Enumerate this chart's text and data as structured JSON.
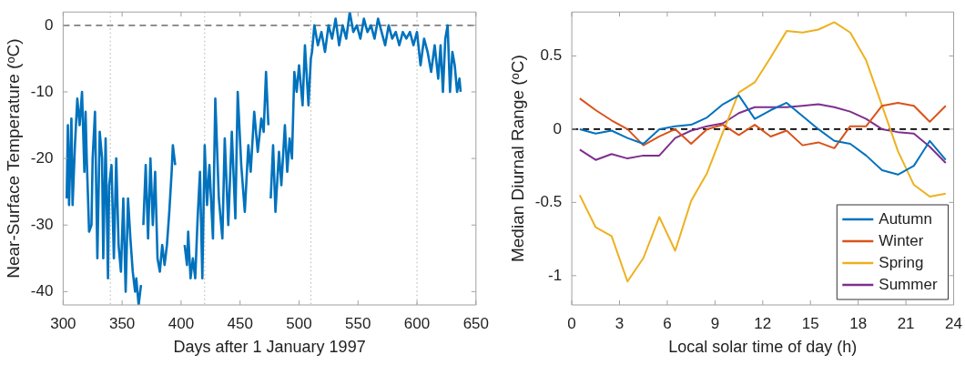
{
  "chart_data": [
    {
      "type": "line",
      "xlabel": "Days after 1 January 1997",
      "ylabel": "Near-Surface Temperature (ᵒC)",
      "xlim": [
        300,
        650
      ],
      "xticks": [
        300,
        350,
        400,
        450,
        500,
        550,
        600,
        650
      ],
      "ylim": [
        -42,
        2
      ],
      "yticks": [
        -40,
        -30,
        -20,
        -10,
        0
      ],
      "series": [
        {
          "color": "#0072bd",
          "x": [
            303,
            304,
            305,
            307,
            308,
            310,
            312,
            314,
            316,
            318,
            319,
            320,
            322,
            324,
            325,
            327,
            329,
            331,
            333,
            334,
            336,
            338,
            339,
            341,
            343,
            345,
            347,
            349,
            351,
            353,
            355,
            357,
            359,
            361,
            362,
            364,
            366,
            367,
            368,
            370,
            372,
            374,
            376,
            378,
            380,
            382,
            384,
            386,
            388,
            390,
            392,
            393,
            395,
            399,
            403,
            405,
            406,
            408,
            410,
            412,
            414,
            416,
            418,
            420,
            422,
            424,
            427,
            429,
            432,
            435,
            437,
            440,
            443,
            446,
            448,
            451,
            454,
            457,
            459,
            462,
            465,
            468,
            470,
            472,
            474,
            475,
            476,
            478,
            480,
            483,
            485,
            488,
            490,
            492,
            494,
            496,
            498,
            500,
            503,
            505,
            508,
            510,
            511,
            513,
            516,
            519,
            522,
            525,
            528,
            531,
            534,
            537,
            540,
            543,
            546,
            549,
            552,
            555,
            558,
            561,
            564,
            567,
            570,
            573,
            576,
            579,
            582,
            585,
            588,
            591,
            594,
            597,
            600,
            603,
            606,
            609,
            612,
            615,
            618,
            620,
            622,
            624,
            626,
            628,
            630,
            632,
            634,
            636,
            637
          ],
          "values": [
            -26,
            -15,
            -27,
            -14,
            -27,
            -18,
            -11,
            -15,
            -10,
            -22,
            -13,
            -20,
            -31,
            -30,
            -20,
            -13,
            -35,
            -16,
            -20,
            -35,
            -17,
            -38,
            -24,
            -21,
            -35,
            -20,
            -33,
            -37,
            -26,
            -40,
            -26,
            -32,
            -37,
            -40,
            -38,
            -42,
            -39,
            null,
            -30,
            -21,
            -32,
            -20,
            -30,
            -22,
            -35,
            -37,
            -33,
            -36,
            -33,
            -28,
            -22,
            -18,
            -21,
            null,
            -33,
            -36,
            -31,
            -38,
            -35,
            -38,
            -29,
            -22,
            -38,
            -18,
            -27,
            -21,
            -32,
            -11,
            -26,
            -32,
            -17,
            -30,
            -16,
            -29,
            -10,
            -21,
            -28,
            -18,
            -22,
            -13,
            -19,
            -14,
            -16,
            -7,
            -15,
            null,
            -26,
            -18,
            -28,
            -19,
            -24,
            -15,
            -22,
            -17,
            -20,
            -7,
            -10,
            -6,
            -12,
            -3,
            -12,
            -5,
            -4,
            0,
            -3,
            -1,
            -4,
            0,
            -2,
            1,
            -3,
            0,
            -2,
            2,
            -1,
            0,
            -2,
            1,
            -1,
            0,
            -2,
            1,
            -1,
            -3,
            0,
            -2,
            -1,
            -3,
            -1,
            -2,
            -1,
            -3,
            -1,
            -6,
            -2,
            -4,
            -7,
            -3,
            -8,
            -3,
            -10,
            -2,
            0,
            -10,
            -4,
            -6,
            -10,
            -8,
            -10
          ]
        }
      ],
      "ref_lines": [
        {
          "axis": "y",
          "value": 0,
          "color": "#808080",
          "line_style": "dashed"
        },
        {
          "axis": "x",
          "value": 340,
          "color": "#b0b0b0",
          "line_style": "dotted"
        },
        {
          "axis": "x",
          "value": 420,
          "color": "#b0b0b0",
          "line_style": "dotted"
        },
        {
          "axis": "x",
          "value": 510,
          "color": "#b0b0b0",
          "line_style": "dotted"
        },
        {
          "axis": "x",
          "value": 600,
          "color": "#b0b0b0",
          "line_style": "dotted"
        }
      ]
    },
    {
      "type": "line",
      "xlabel": "Local solar time of day (h)",
      "ylabel": "Median Diurnal Range (ᵒC)",
      "xlim": [
        0,
        24
      ],
      "xticks": [
        0,
        3,
        6,
        9,
        12,
        15,
        18,
        21,
        24
      ],
      "ylim": [
        -1.2,
        0.8
      ],
      "yticks": [
        -1,
        -0.5,
        0,
        0.5
      ],
      "legend": "bottom right",
      "x": [
        0.5,
        1.5,
        2.5,
        3.5,
        4.5,
        5.5,
        6.5,
        7.5,
        8.5,
        9.5,
        10.5,
        11.5,
        12.5,
        13.5,
        14.5,
        15.5,
        16.5,
        17.5,
        18.5,
        19.5,
        20.5,
        21.5,
        22.5,
        23.5
      ],
      "series": [
        {
          "name": "Autumn",
          "color": "#0072bd",
          "values": [
            0,
            -0.03,
            -0.01,
            -0.06,
            -0.1,
            0,
            0.02,
            0.03,
            0.08,
            0.17,
            0.23,
            0.07,
            0.13,
            0.18,
            0.09,
            0,
            -0.08,
            -0.1,
            -0.18,
            -0.28,
            -0.31,
            -0.25,
            -0.08,
            -0.21
          ]
        },
        {
          "name": "Winter",
          "color": "#d95319",
          "values": [
            0.21,
            0.13,
            0.06,
            0,
            -0.11,
            -0.05,
            0,
            -0.1,
            0,
            0.03,
            -0.04,
            0.03,
            -0.05,
            -0.01,
            -0.11,
            -0.09,
            -0.13,
            0.02,
            0.02,
            0.16,
            0.18,
            0.16,
            0.05,
            0.16
          ]
        },
        {
          "name": "Spring",
          "color": "#edb120",
          "values": [
            -0.45,
            -0.67,
            -0.73,
            -1.04,
            -0.88,
            -0.6,
            -0.83,
            -0.49,
            -0.3,
            -0.02,
            0.25,
            0.32,
            0.49,
            0.67,
            0.66,
            0.68,
            0.73,
            0.66,
            0.47,
            0.16,
            -0.15,
            -0.38,
            -0.46,
            -0.44
          ]
        },
        {
          "name": "Summer",
          "color": "#7e2f8e",
          "values": [
            -0.14,
            -0.21,
            -0.17,
            -0.2,
            -0.18,
            -0.18,
            -0.06,
            -0.01,
            0.02,
            0.04,
            0.11,
            0.15,
            0.15,
            0.15,
            0.16,
            0.17,
            0.15,
            0.12,
            0.07,
            0,
            -0.02,
            -0.03,
            -0.12,
            -0.23
          ]
        }
      ],
      "ref_lines": [
        {
          "axis": "y",
          "value": 0,
          "color": "#000000",
          "line_style": "dashed"
        }
      ]
    }
  ]
}
